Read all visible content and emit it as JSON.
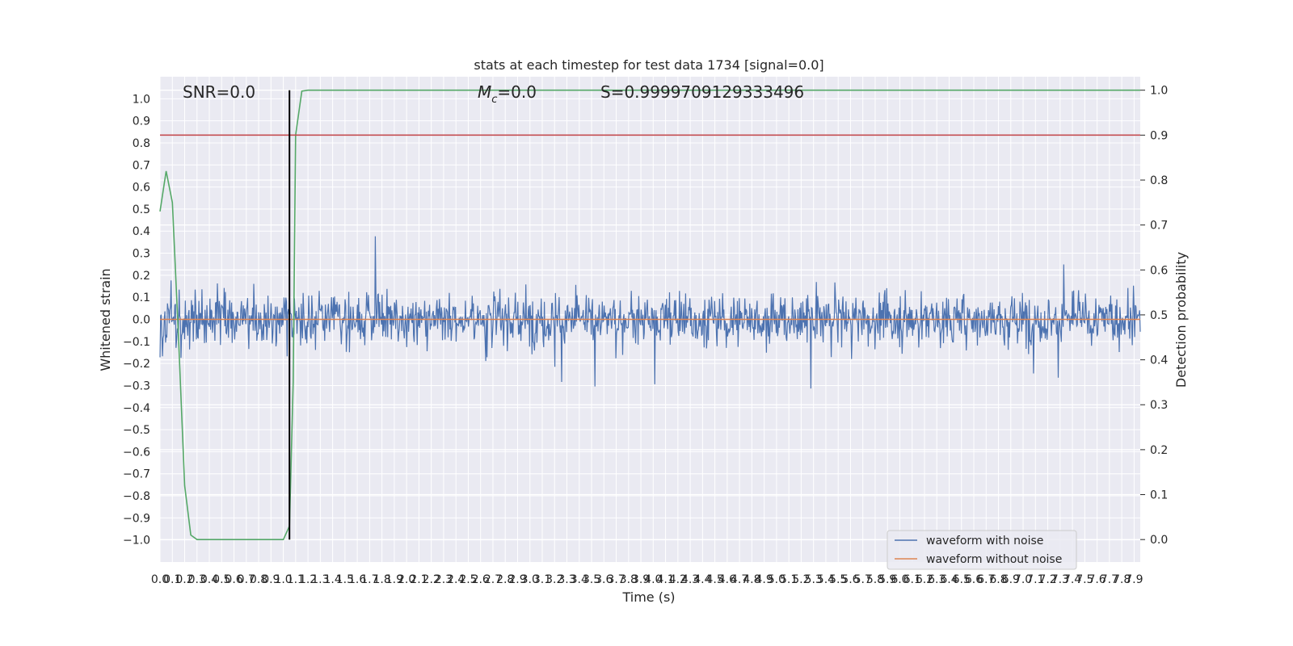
{
  "chart_data": {
    "type": "line",
    "title": "stats at each timestep for test data 1734 [signal=0.0]",
    "xlabel": "Time (s)",
    "ylabel": "Whitened strain",
    "y2label": "Detection probability",
    "xlim": [
      0.0,
      7.95
    ],
    "ylim": [
      -1.1,
      1.1
    ],
    "y2lim": [
      -0.05,
      1.03
    ],
    "x_ticks": [
      0.0,
      0.1,
      0.2,
      0.3,
      0.4,
      0.5,
      0.6,
      0.7,
      0.8,
      0.9,
      1.0,
      1.1,
      1.2,
      1.3,
      1.4,
      1.5,
      1.6,
      1.7,
      1.8,
      1.9,
      2.0,
      2.1,
      2.2,
      2.3,
      2.4,
      2.5,
      2.6,
      2.7,
      2.8,
      2.9,
      3.0,
      3.1,
      3.2,
      3.3,
      3.4,
      3.5,
      3.6,
      3.7,
      3.8,
      3.9,
      4.0,
      4.1,
      4.2,
      4.3,
      4.4,
      4.5,
      4.6,
      4.7,
      4.8,
      4.9,
      5.0,
      5.1,
      5.2,
      5.3,
      5.4,
      5.5,
      5.6,
      5.7,
      5.8,
      5.9,
      6.0,
      6.1,
      6.2,
      6.3,
      6.4,
      6.5,
      6.6,
      6.7,
      6.8,
      6.9,
      7.0,
      7.1,
      7.2,
      7.3,
      7.4,
      7.5,
      7.6,
      7.7,
      7.8,
      7.9
    ],
    "y_ticks": [
      "1.0",
      "0.9",
      "0.8",
      "0.7",
      "0.6",
      "0.5",
      "0.4",
      "0.3",
      "0.2",
      "0.1",
      "0.0",
      "−0.1",
      "−0.2",
      "−0.3",
      "−0.4",
      "−0.5",
      "−0.6",
      "−0.7",
      "−0.8",
      "−0.9",
      "−1.0"
    ],
    "y2_ticks": [
      "1.0",
      "0.9",
      "0.8",
      "0.7",
      "0.6",
      "0.5",
      "0.4",
      "0.3",
      "0.2",
      "0.1",
      "0.0"
    ],
    "annotations": {
      "snr": "SNR=0.0",
      "mc": "=0.0",
      "mc_symbol": "M",
      "mc_subscript": "c",
      "s": "S=0.9999709129333496"
    },
    "grid": true,
    "legend_position": "lower-right",
    "series": [
      {
        "name": "waveform with noise",
        "color": "#4c72b0",
        "axis": "left",
        "kind": "dense-noise",
        "sample_rate_hz": 200,
        "duration_s": 7.95,
        "envelope_approx": [
          -0.97,
          0.97
        ]
      },
      {
        "name": "waveform without noise",
        "color": "#dd8452",
        "axis": "left",
        "x": [
          0.0,
          7.95
        ],
        "y": [
          0.0,
          0.0
        ]
      },
      {
        "name": "detection probability",
        "color": "#55a868",
        "axis": "right",
        "x": [
          0.0,
          0.05,
          0.1,
          0.15,
          0.2,
          0.25,
          0.3,
          0.4,
          0.6,
          0.8,
          1.0,
          1.05,
          1.08,
          1.1,
          1.15,
          1.2,
          1.5,
          2.0,
          3.0,
          4.0,
          5.0,
          6.0,
          7.0,
          7.95
        ],
        "y": [
          0.73,
          0.82,
          0.75,
          0.45,
          0.12,
          0.01,
          0.0,
          0.0,
          0.0,
          0.0,
          0.0,
          0.03,
          0.35,
          0.9,
          0.998,
          1.0,
          1.0,
          1.0,
          1.0,
          1.0,
          1.0,
          1.0,
          1.0,
          1.0
        ]
      },
      {
        "name": "threshold",
        "color": "#c44e52",
        "axis": "right",
        "x": [
          0.0,
          7.95
        ],
        "y": [
          0.9,
          0.9
        ]
      },
      {
        "name": "detection time",
        "color": "#000000",
        "axis": "right",
        "x": [
          1.05,
          1.05
        ],
        "y": [
          0.0,
          1.0
        ]
      }
    ]
  }
}
